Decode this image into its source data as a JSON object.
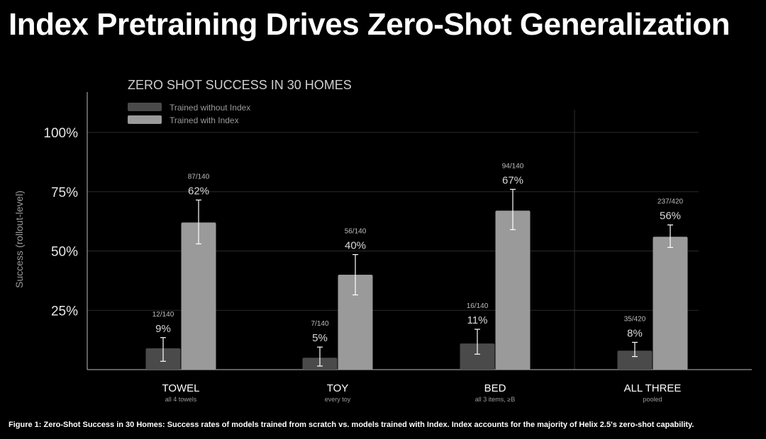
{
  "title": "Index Pretraining Drives Zero-Shot Generalization",
  "caption": "Figure 1: Zero-Shot Success in 30 Homes: Success rates of models trained from scratch vs. models trained with Index. Index accounts for the majority of Helix 2.5's zero-shot capability.",
  "colors": {
    "background": "#000000",
    "without_index": "#4a4a4a",
    "with_index": "#9a9a9a",
    "axis": "#bdbdbd",
    "grid": "#2a2a2a"
  },
  "chart_data": {
    "type": "bar",
    "title": "ZERO SHOT SUCCESS IN 30 HOMES",
    "ylabel": "Success (rollout-level)",
    "xlabel": "",
    "ylim": [
      0,
      100
    ],
    "yticks": [
      25,
      50,
      75,
      100
    ],
    "ytick_labels": [
      "25%",
      "50%",
      "75%",
      "100%"
    ],
    "grid": true,
    "legend_position": "top-left",
    "categories": [
      "TOWEL",
      "TOY",
      "BED",
      "ALL THREE"
    ],
    "category_sublabels": [
      "all 4 towels",
      "every toy",
      "all 3 items, ≥B",
      "pooled"
    ],
    "series": [
      {
        "name": "Trained without Index",
        "values": [
          9,
          5,
          11,
          8
        ],
        "value_labels": [
          "9%",
          "5%",
          "11%",
          "8%"
        ],
        "count_labels": [
          "12/140",
          "7/140",
          "16/140",
          "35/420"
        ],
        "error_low": [
          3.5,
          1.5,
          6.5,
          5.5
        ],
        "error_high": [
          13.5,
          9.5,
          17,
          11.5
        ]
      },
      {
        "name": "Trained with Index",
        "values": [
          62,
          40,
          67,
          56
        ],
        "value_labels": [
          "62%",
          "40%",
          "67%",
          "56%"
        ],
        "count_labels": [
          "87/140",
          "56/140",
          "94/140",
          "237/420"
        ],
        "error_low": [
          53,
          31.5,
          59,
          51.5
        ],
        "error_high": [
          71.5,
          48.5,
          76,
          61
        ]
      }
    ]
  }
}
